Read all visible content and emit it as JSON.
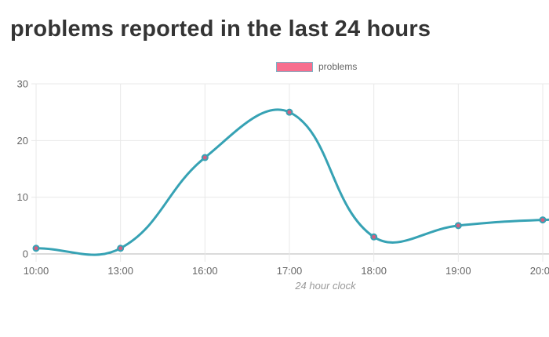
{
  "page": {
    "background": "#ffffff"
  },
  "title": "problems reported in the last 24 hours",
  "legend": {
    "items": [
      {
        "label": "problems",
        "swatch_fill": "#f76e8e",
        "swatch_border": "#79b5c8"
      }
    ]
  },
  "chart_data": {
    "type": "line",
    "title": "problems reported in the last 24 hours",
    "x": [
      "10:00",
      "13:00",
      "16:00",
      "17:00",
      "18:00",
      "19:00",
      "20:00"
    ],
    "series": [
      {
        "name": "problems",
        "values": [
          1,
          1,
          17,
          25,
          3,
          5,
          6
        ]
      }
    ],
    "xlabel": "24 hour clock",
    "ylabel": "",
    "ylim": [
      0,
      30
    ],
    "yticks": [
      0,
      10,
      20,
      30
    ],
    "grid": true,
    "legend_position": "top-center",
    "smooth": true,
    "tension": 0.4,
    "line_continues_past_right_edge": true,
    "colors": {
      "line": "#36a2b4",
      "point_fill": "#d05f80",
      "point_border": "#36a2b4",
      "grid": "#e8e8e8",
      "zero_line": "#b6b6b6",
      "tick_text": "#666666",
      "title_text": "#343434",
      "axis_title_text": "#999999"
    }
  }
}
